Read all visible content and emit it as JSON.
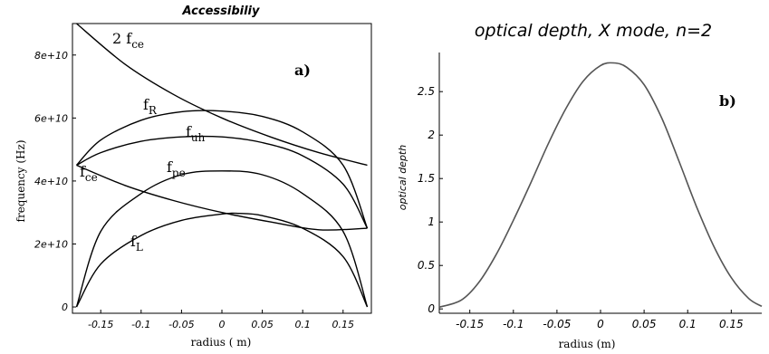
{
  "chart_data": [
    {
      "type": "line",
      "title": "Accessibiliy",
      "xlabel": "radius ( m)",
      "ylabel": "frequency (Hz)",
      "panel_label": "a)",
      "xlim": [
        -0.185,
        0.185
      ],
      "ylim": [
        -2000000000.0,
        90000000000.0
      ],
      "x_ticks": [
        -0.15,
        -0.1,
        -0.05,
        0,
        0.05,
        0.1,
        0.15
      ],
      "x_tick_labels": [
        "-0.15",
        "-0.1",
        "-0.05",
        "0",
        "0.05",
        "0.1",
        "0.15"
      ],
      "y_ticks": [
        0,
        20000000000.0,
        40000000000.0,
        60000000000.0,
        80000000000.0
      ],
      "y_tick_labels": [
        "0",
        "2e+10",
        "4e+10",
        "6e+10",
        "8e+10"
      ],
      "series": [
        {
          "name": "2 f_ce",
          "label_main": "2 f",
          "label_sub": "ce",
          "x": [
            -0.18,
            -0.12,
            -0.06,
            0,
            0.06,
            0.12,
            0.18
          ],
          "y": [
            90000000000.0,
            77100000000.0,
            67500000000.0,
            60000000000.0,
            54000000000.0,
            49000000000.0,
            45000000000.0
          ]
        },
        {
          "name": "f_R",
          "label_main": "f",
          "label_sub": "R",
          "x": [
            -0.18,
            -0.15,
            -0.1,
            -0.05,
            0,
            0.05,
            0.1,
            0.15,
            0.18
          ],
          "y": [
            45000000000.0,
            53000000000.0,
            59300000000.0,
            62000000000.0,
            62200000000.0,
            60500000000.0,
            55600000000.0,
            45000000000.0,
            25000000000.0
          ]
        },
        {
          "name": "f_uh",
          "label_main": "f",
          "label_sub": "uh",
          "x": [
            -0.18,
            -0.15,
            -0.1,
            -0.05,
            0,
            0.05,
            0.1,
            0.15,
            0.18
          ],
          "y": [
            45000000000.0,
            49000000000.0,
            52600000000.0,
            54000000000.0,
            54000000000.0,
            52200000000.0,
            48000000000.0,
            39000000000.0,
            25000000000.0
          ]
        },
        {
          "name": "f_ce",
          "label_main": "f",
          "label_sub": "ce",
          "x": [
            -0.18,
            -0.12,
            -0.06,
            0,
            0.06,
            0.12,
            0.18
          ],
          "y": [
            45000000000.0,
            38600000000.0,
            33800000000.0,
            30000000000.0,
            27000000000.0,
            24500000000.0,
            25000000000.0
          ]
        },
        {
          "name": "f_pe",
          "label_main": "f",
          "label_sub": "pe",
          "x": [
            -0.18,
            -0.15,
            -0.1,
            -0.05,
            0,
            0.05,
            0.1,
            0.15,
            0.18
          ],
          "y": [
            0,
            24000000000.0,
            36000000000.0,
            42000000000.0,
            43200000000.0,
            42000000000.0,
            36000000000.0,
            24000000000.0,
            0
          ]
        },
        {
          "name": "f_L",
          "label_main": "f",
          "label_sub": "L",
          "x": [
            -0.18,
            -0.15,
            -0.1,
            -0.05,
            0,
            0.02,
            0.05,
            0.1,
            0.15,
            0.18
          ],
          "y": [
            0,
            13600000000.0,
            22700000000.0,
            27500000000.0,
            29500000000.0,
            29700000000.0,
            29000000000.0,
            25000000000.0,
            16000000000.0,
            0
          ]
        }
      ]
    },
    {
      "type": "line",
      "title": "optical depth, X mode,  n=2",
      "xlabel": "radius (m)",
      "ylabel": "optical depth",
      "panel_label": "b)",
      "xlim": [
        -0.185,
        0.185
      ],
      "ylim": [
        -0.05,
        2.95
      ],
      "x_ticks": [
        -0.15,
        -0.1,
        -0.05,
        0,
        0.05,
        0.1,
        0.15
      ],
      "x_tick_labels": [
        "-0.15",
        "-0.1",
        "-0.05",
        "0",
        "0.05",
        "0.1",
        "0.15"
      ],
      "y_ticks": [
        0,
        0.5,
        1,
        1.5,
        2,
        2.5
      ],
      "y_tick_labels": [
        "0",
        "0.5",
        "1",
        "1.5",
        "2",
        "2.5"
      ],
      "series": [
        {
          "name": "",
          "x": [
            -0.185,
            -0.16,
            -0.14,
            -0.12,
            -0.1,
            -0.08,
            -0.06,
            -0.04,
            -0.02,
            0,
            0.015,
            0.03,
            0.05,
            0.07,
            0.09,
            0.11,
            0.13,
            0.15,
            0.17,
            0.185
          ],
          "y": [
            0.02,
            0.1,
            0.3,
            0.62,
            1.02,
            1.45,
            1.9,
            2.3,
            2.62,
            2.8,
            2.83,
            2.78,
            2.58,
            2.2,
            1.7,
            1.18,
            0.72,
            0.36,
            0.12,
            0.03
          ]
        }
      ]
    }
  ]
}
